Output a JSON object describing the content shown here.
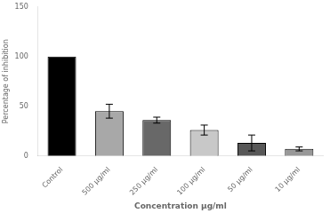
{
  "chart_data": {
    "type": "bar",
    "categories": [
      "Control",
      "500 μg/ml",
      "250 μg/ml",
      "100 μg/ml",
      "50 μg/ml",
      "10 μg/ml"
    ],
    "values": [
      100,
      45,
      36,
      26,
      13,
      7
    ],
    "errors": [
      0,
      7,
      3,
      5,
      8,
      2
    ],
    "colors": [
      "#000000",
      "#a8a8a8",
      "#686868",
      "#c8c8c8",
      "#585858",
      "#989898"
    ],
    "xlabel": "Concentration μg/ml",
    "ylabel": "Percentage of inhibition",
    "ylim": [
      0,
      150
    ],
    "yticks": [
      0,
      50,
      100,
      150
    ],
    "grid": false
  }
}
